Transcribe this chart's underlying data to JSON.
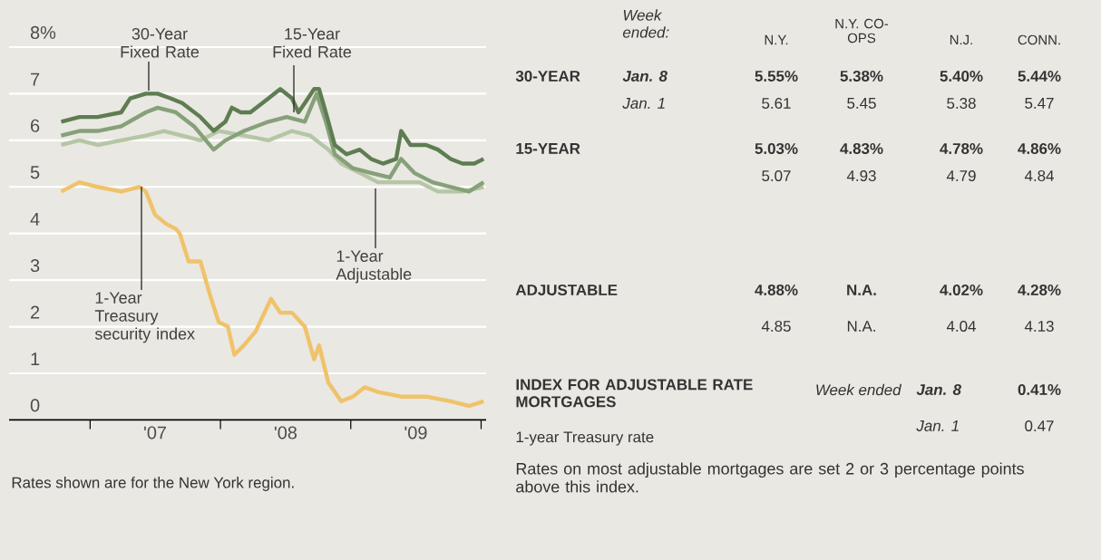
{
  "chart_data": [
    {
      "type": "line",
      "series": [
        {
          "name": "30-Year Fixed Rate",
          "color": "#5e7d52",
          "x": [
            "2006-10-12",
            "2006-12-02",
            "2007-01-22",
            "2007-03-29",
            "2007-04-23",
            "2007-06-06",
            "2007-07-09",
            "2007-08-14",
            "2007-09-16",
            "2007-11-06",
            "2007-12-13",
            "2008-01-15",
            "2008-02-02",
            "2008-02-27",
            "2008-03-25",
            "2008-05-15",
            "2008-06-17",
            "2008-07-20",
            "2008-08-07",
            "2008-08-25",
            "2008-09-20",
            "2008-10-04",
            "2008-10-23",
            "2008-11-17",
            "2008-12-20",
            "2009-01-26",
            "2009-02-27",
            "2009-04-01",
            "2009-05-08",
            "2009-05-22",
            "2009-06-17",
            "2009-07-31",
            "2009-09-02",
            "2009-10-08",
            "2009-11-10",
            "2009-12-13",
            "2010-01-08"
          ],
          "values": [
            6.4,
            6.5,
            6.5,
            6.6,
            6.9,
            7.0,
            7.0,
            6.9,
            6.8,
            6.5,
            6.2,
            6.4,
            6.7,
            6.6,
            6.6,
            6.9,
            7.1,
            6.9,
            6.6,
            6.8,
            7.1,
            7.1,
            6.6,
            5.9,
            5.7,
            5.8,
            5.6,
            5.5,
            5.6,
            6.2,
            5.9,
            5.9,
            5.8,
            5.6,
            5.5,
            5.5,
            5.6
          ]
        },
        {
          "name": "15-Year Fixed Rate",
          "color": "#87a07a",
          "x": [
            "2006-10-12",
            "2006-12-02",
            "2007-01-22",
            "2007-03-29",
            "2007-06-06",
            "2007-07-09",
            "2007-08-29",
            "2007-10-19",
            "2007-12-13",
            "2008-01-15",
            "2008-03-07",
            "2008-05-15",
            "2008-07-05",
            "2008-08-25",
            "2008-09-27",
            "2008-10-23",
            "2008-11-17",
            "2009-01-07",
            "2009-02-27",
            "2009-04-20",
            "2009-05-22",
            "2009-06-28",
            "2009-08-18",
            "2009-10-08",
            "2009-11-28",
            "2010-01-08"
          ],
          "values": [
            6.1,
            6.2,
            6.2,
            6.3,
            6.6,
            6.7,
            6.6,
            6.3,
            5.8,
            6.0,
            6.2,
            6.4,
            6.5,
            6.4,
            7.0,
            6.4,
            5.7,
            5.4,
            5.3,
            5.2,
            5.6,
            5.3,
            5.1,
            5.0,
            4.9,
            5.1
          ]
        },
        {
          "name": "1-Year Adjustable",
          "color": "#b5c6a6",
          "x": [
            "2006-10-12",
            "2006-12-02",
            "2007-01-22",
            "2007-03-29",
            "2007-06-06",
            "2007-07-27",
            "2007-09-16",
            "2007-11-06",
            "2007-12-27",
            "2008-03-07",
            "2008-05-15",
            "2008-07-20",
            "2008-09-09",
            "2008-10-30",
            "2008-12-05",
            "2009-01-26",
            "2009-03-18",
            "2009-05-22",
            "2009-07-12",
            "2009-09-02",
            "2009-11-10",
            "2010-01-08"
          ],
          "values": [
            5.9,
            6.0,
            5.9,
            6.0,
            6.1,
            6.2,
            6.1,
            6.0,
            6.2,
            6.1,
            6.0,
            6.2,
            6.1,
            5.8,
            5.5,
            5.3,
            5.1,
            5.1,
            5.1,
            4.9,
            4.9,
            5.0
          ]
        },
        {
          "name": "1-Year Treasury security index",
          "color": "#f0c26a",
          "x": [
            "2006-10-12",
            "2006-12-02",
            "2007-01-22",
            "2007-03-29",
            "2007-05-19",
            "2007-06-06",
            "2007-07-02",
            "2007-08-03",
            "2007-08-29",
            "2007-09-09",
            "2007-10-04",
            "2007-11-06",
            "2007-12-02",
            "2007-12-27",
            "2008-01-22",
            "2008-02-09",
            "2008-03-07",
            "2008-04-09",
            "2008-05-22",
            "2008-06-17",
            "2008-07-20",
            "2008-08-25",
            "2008-09-20",
            "2008-10-04",
            "2008-10-30",
            "2008-12-05",
            "2009-01-07",
            "2009-02-09",
            "2009-03-18",
            "2009-05-22",
            "2009-07-31",
            "2009-10-08",
            "2009-11-28",
            "2010-01-08"
          ],
          "values": [
            4.9,
            5.1,
            5.0,
            4.9,
            5.0,
            4.9,
            4.4,
            4.2,
            4.1,
            4.0,
            3.4,
            3.4,
            2.7,
            2.1,
            2.0,
            1.4,
            1.6,
            1.9,
            2.6,
            2.3,
            2.3,
            2.0,
            1.3,
            1.6,
            0.8,
            0.4,
            0.5,
            0.7,
            0.6,
            0.5,
            0.5,
            0.4,
            0.3,
            0.4
          ]
        }
      ],
      "xlim": [
        "2006-05-19",
        "2010-01-15"
      ],
      "xticks": [
        {
          "value": "2007-01-01",
          "label": null
        },
        {
          "value": "2007-07-02",
          "label": "'07"
        },
        {
          "value": "2008-01-01",
          "label": null
        },
        {
          "value": "2008-07-02",
          "label": "'08"
        },
        {
          "value": "2009-01-01",
          "label": null
        },
        {
          "value": "2009-07-02",
          "label": "'09"
        },
        {
          "value": "2010-01-01",
          "label": null
        }
      ],
      "ylim": [
        0,
        8
      ],
      "yticks": [
        0,
        1,
        2,
        3,
        4,
        5,
        6,
        7,
        {
          "value": 8,
          "label": "8%"
        }
      ],
      "grid": "y",
      "annotations": [
        "Rates shown are for the New York region."
      ]
    },
    {
      "type": "other",
      "annotations": [
        "Week ended:",
        "N.Y.",
        "N.Y. CO-OPS",
        "N.J.",
        "CONN.",
        "30-YEAR",
        "Jan. 8",
        "5.55%",
        "5.38%",
        "5.40%",
        "5.44%",
        "Jan. 1",
        "5.61",
        "5.45",
        "5.38",
        "5.47",
        "15-YEAR",
        "5.03%",
        "4.83%",
        "4.78%",
        "4.86%",
        "5.07",
        "4.93",
        "4.79",
        "4.84",
        "ADJUSTABLE",
        "4.88%",
        "N.A.",
        "4.02%",
        "4.28%",
        "4.85",
        "N.A.",
        "4.04",
        "4.13",
        "INDEX FOR ADJUSTABLE RATE MORTGAGES",
        "1-year Treasury rate",
        "Week ended",
        "Jan. 8",
        "0.41%",
        "Jan. 1",
        "0.47",
        "Rates on most adjustable mortgages are set 2 or 3 percentage points above this index."
      ]
    }
  ]
}
